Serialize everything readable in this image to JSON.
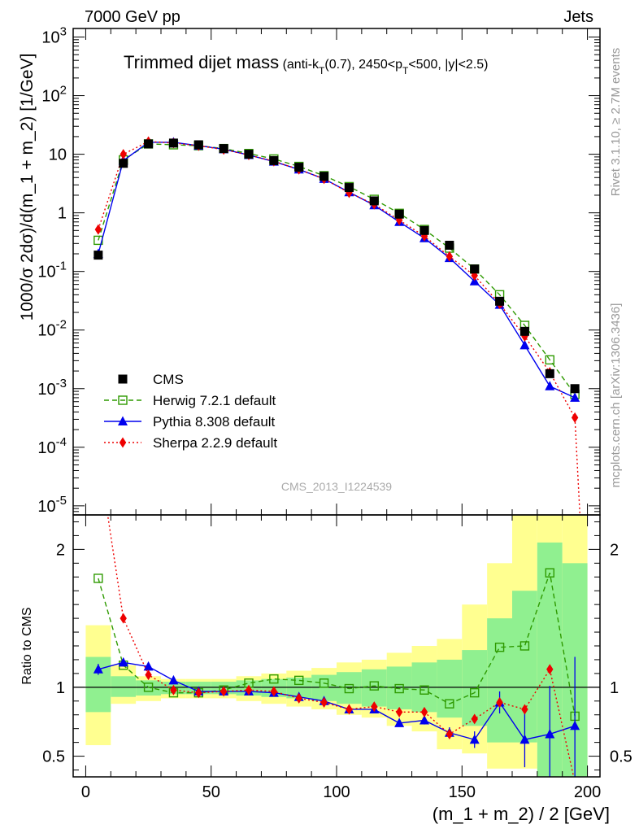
{
  "header": {
    "left": "7000 GeV pp",
    "right": "Jets"
  },
  "side_labels": {
    "rivet": "Rivet 3.1.10, ≥ 2.7M events",
    "mcplots": "mcplots.cern.ch [arXiv:1306.3436]"
  },
  "watermark": "CMS_2013_I1224539",
  "chart_data": {
    "type": "scatter",
    "title_main": "Trimmed dijet mass",
    "title_detail": "(anti-k_T(0.7), 2450<p_T<500, |y|<2.5)",
    "xlabel": "(m_1 + m_2) / 2 [GeV]",
    "ylabel": "1000/σ 2dσ)/d(m_1 + m_2) [1/GeV]",
    "ratio_ylabel": "Ratio to CMS",
    "xlim": [
      -5,
      205
    ],
    "ylim_log": [
      7e-06,
      1400
    ],
    "ratio_ylim": [
      0.35,
      2.25
    ],
    "x_ticks": [
      "0",
      "50",
      "100",
      "150",
      "200"
    ],
    "y_ticks": [
      "10^-5",
      "10^-4",
      "10^-3",
      "10^-2",
      "10^-1",
      "1",
      "10",
      "10^2",
      "10^3"
    ],
    "ratio_ticks": [
      "0.5",
      "1",
      "2"
    ],
    "legend_position": "lower-left",
    "x": [
      5,
      15,
      25,
      35,
      45,
      55,
      65,
      75,
      85,
      95,
      105,
      115,
      125,
      135,
      145,
      155,
      165,
      175,
      185,
      195
    ],
    "cms_band_inner": [
      [
        0.82,
        1.22
      ],
      [
        0.93,
        1.08
      ],
      [
        0.94,
        1.05
      ],
      [
        0.95,
        1.04
      ],
      [
        0.95,
        1.04
      ],
      [
        0.95,
        1.04
      ],
      [
        0.94,
        1.05
      ],
      [
        0.93,
        1.06
      ],
      [
        0.92,
        1.07
      ],
      [
        0.9,
        1.09
      ],
      [
        0.88,
        1.11
      ],
      [
        0.86,
        1.13
      ],
      [
        0.84,
        1.15
      ],
      [
        0.82,
        1.18
      ],
      [
        0.78,
        1.2
      ],
      [
        0.72,
        1.27
      ],
      [
        0.6,
        1.5
      ],
      [
        0.6,
        1.7
      ],
      [
        0.35,
        2.05
      ],
      [
        0.35,
        1.9
      ]
    ],
    "cms_band_outer": [
      [
        0.58,
        1.45
      ],
      [
        0.88,
        1.16
      ],
      [
        0.9,
        1.08
      ],
      [
        0.92,
        1.06
      ],
      [
        0.92,
        1.06
      ],
      [
        0.92,
        1.06
      ],
      [
        0.9,
        1.08
      ],
      [
        0.88,
        1.1
      ],
      [
        0.86,
        1.12
      ],
      [
        0.84,
        1.14
      ],
      [
        0.8,
        1.18
      ],
      [
        0.78,
        1.2
      ],
      [
        0.72,
        1.25
      ],
      [
        0.68,
        1.3
      ],
      [
        0.55,
        1.35
      ],
      [
        0.52,
        1.6
      ],
      [
        0.41,
        1.9
      ],
      [
        0.41,
        2.25
      ],
      [
        0.35,
        2.25
      ],
      [
        0.35,
        2.25
      ]
    ],
    "series": [
      {
        "name": "CMS",
        "color": "#000000",
        "marker": "square-filled",
        "line": "none",
        "values": [
          0.19,
          7.0,
          15.0,
          15.5,
          14.5,
          12.5,
          10.0,
          7.8,
          6.0,
          4.2,
          2.7,
          1.6,
          0.95,
          0.5,
          0.28,
          0.11,
          0.031,
          0.0095,
          0.0018,
          0.001
        ],
        "ratio": [
          1,
          1,
          1,
          1,
          1,
          1,
          1,
          1,
          1,
          1,
          1,
          1,
          1,
          1,
          1,
          1,
          1,
          1,
          1,
          1
        ]
      },
      {
        "name": "Herwig 7.2.1 default",
        "color": "#2e9a00",
        "marker": "square-open",
        "line": "dashed",
        "values": [
          0.34,
          8.0,
          15.0,
          14.5,
          14.0,
          12.5,
          10.3,
          8.3,
          6.2,
          4.3,
          2.8,
          1.7,
          0.98,
          0.52,
          0.25,
          0.11,
          0.04,
          0.012,
          0.0031,
          0.0008
        ],
        "ratio": [
          1.79,
          1.16,
          1.0,
          0.96,
          0.96,
          0.98,
          1.03,
          1.06,
          1.05,
          1.03,
          0.99,
          1.01,
          0.99,
          0.98,
          0.88,
          0.96,
          1.29,
          1.3,
          1.83,
          0.79
        ]
      },
      {
        "name": "Pythia 8.308 default",
        "color": "#0000ee",
        "marker": "triangle-filled",
        "line": "solid",
        "values": [
          0.2,
          7.8,
          16.0,
          16.0,
          14.0,
          12.2,
          9.7,
          7.5,
          5.5,
          3.8,
          2.25,
          1.35,
          0.7,
          0.37,
          0.17,
          0.068,
          0.027,
          0.0055,
          0.0011,
          0.0007
        ],
        "ratio": [
          1.13,
          1.18,
          1.15,
          1.05,
          0.97,
          0.97,
          0.97,
          0.96,
          0.93,
          0.9,
          0.84,
          0.84,
          0.74,
          0.76,
          0.67,
          0.62,
          0.89,
          0.62,
          0.66,
          0.72
        ],
        "ratio_err": [
          0.04,
          0.03,
          0.02,
          0.02,
          0.02,
          0.02,
          0.02,
          0.02,
          0.02,
          0.02,
          0.02,
          0.02,
          0.02,
          0.03,
          0.04,
          0.06,
          0.08,
          0.2,
          0.35,
          0.5
        ]
      },
      {
        "name": "Sherpa 2.2.9 default",
        "color": "#ee0000",
        "marker": "diamond-filled",
        "line": "dotted",
        "values": [
          0.52,
          10.0,
          16.5,
          15.5,
          14.0,
          12.0,
          9.7,
          7.6,
          5.5,
          3.8,
          2.2,
          1.4,
          0.75,
          0.4,
          0.18,
          0.085,
          0.028,
          0.0078,
          0.0019,
          0.00032
        ],
        "ratio": [
          2.7,
          1.5,
          1.09,
          0.98,
          0.96,
          0.97,
          0.98,
          0.97,
          0.92,
          0.89,
          0.84,
          0.86,
          0.82,
          0.82,
          0.66,
          0.77,
          0.89,
          0.84,
          1.13,
          0.31
        ]
      }
    ]
  }
}
